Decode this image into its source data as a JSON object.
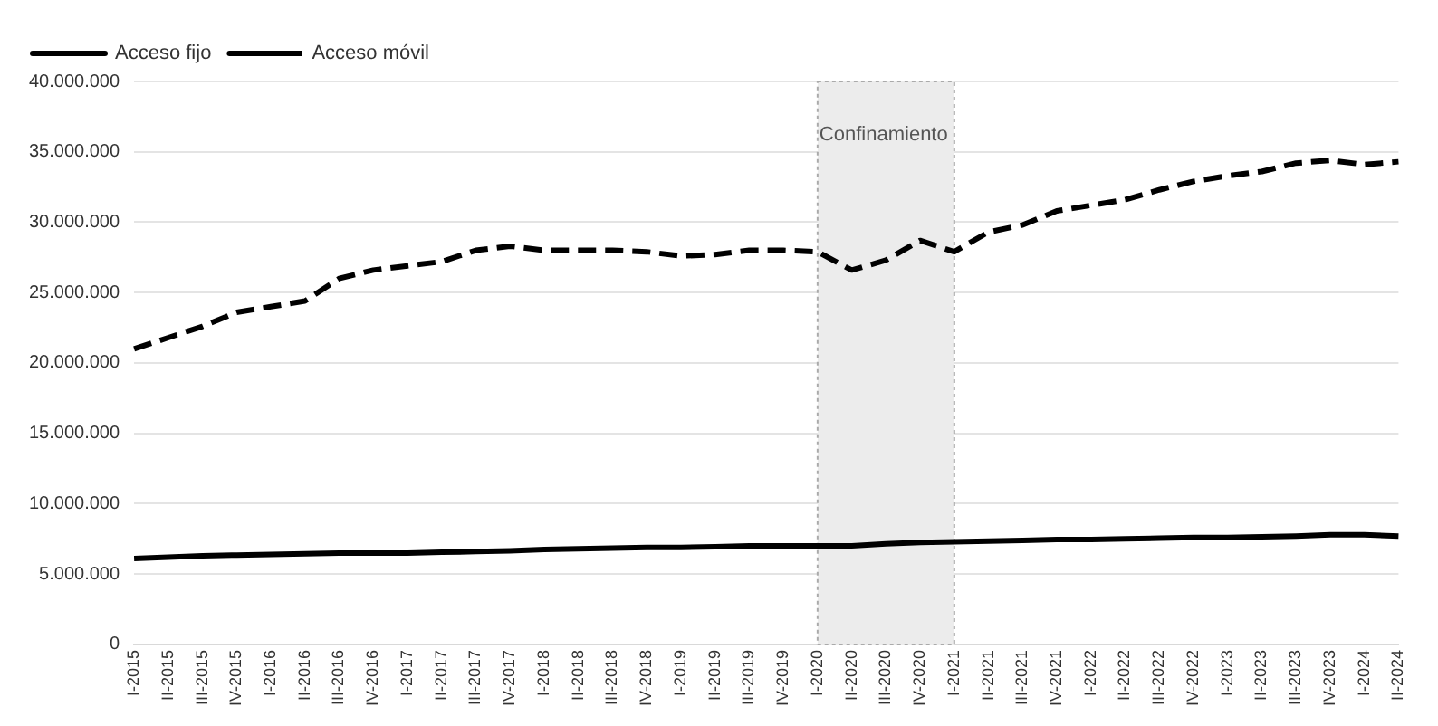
{
  "chart_data": {
    "type": "line",
    "categories": [
      "I-2015",
      "II-2015",
      "III-2015",
      "IV-2015",
      "I-2016",
      "II-2016",
      "III-2016",
      "IV-2016",
      "I-2017",
      "II-2017",
      "III-2017",
      "IV-2017",
      "I-2018",
      "II-2018",
      "III-2018",
      "IV-2018",
      "I-2019",
      "II-2019",
      "III-2019",
      "IV-2019",
      "I-2020",
      "II-2020",
      "III-2020",
      "IV-2020",
      "I-2021",
      "II-2021",
      "III-2021",
      "IV-2021",
      "I-2022",
      "II-2022",
      "III-2022",
      "IV-2022",
      "I-2023",
      "II-2023",
      "III-2023",
      "IV-2023",
      "I-2024",
      "II-2024"
    ],
    "series": [
      {
        "name": "Acceso fijo",
        "color": "#000000",
        "line_style": "solid",
        "values": [
          6100000,
          6200000,
          6300000,
          6350000,
          6400000,
          6450000,
          6500000,
          6500000,
          6500000,
          6550000,
          6600000,
          6650000,
          6750000,
          6800000,
          6850000,
          6900000,
          6900000,
          6950000,
          7000000,
          7000000,
          7000000,
          7000000,
          7150000,
          7250000,
          7300000,
          7350000,
          7400000,
          7450000,
          7450000,
          7500000,
          7550000,
          7600000,
          7600000,
          7650000,
          7700000,
          7800000,
          7800000,
          7700000
        ]
      },
      {
        "name": "Acceso móvil",
        "color": "#000000",
        "line_style": "dashed",
        "values": [
          21000000,
          21800000,
          22600000,
          23600000,
          24000000,
          24400000,
          26000000,
          26600000,
          26900000,
          27200000,
          28000000,
          28300000,
          28000000,
          28000000,
          28000000,
          27900000,
          27600000,
          27700000,
          28000000,
          28000000,
          27900000,
          26600000,
          27300000,
          28700000,
          27900000,
          29300000,
          29800000,
          30800000,
          31200000,
          31600000,
          32300000,
          32900000,
          33300000,
          33600000,
          34200000,
          34400000,
          34100000,
          34300000
        ]
      }
    ],
    "ylim": [
      0,
      40000000
    ],
    "yticks": [
      0,
      {
        "value": 5000000,
        "label": "5.000.000"
      },
      {
        "value": 10000000,
        "label": "10.000.000"
      },
      {
        "value": 15000000,
        "label": "15.000.000"
      },
      {
        "value": 20000000,
        "label": "20.000.000"
      },
      {
        "value": 25000000,
        "label": "25.000.000"
      },
      {
        "value": 30000000,
        "label": "30.000.000"
      },
      {
        "value": 35000000,
        "label": "35.000.000"
      },
      {
        "value": 40000000,
        "label": "40.000.000"
      }
    ],
    "grid": "y",
    "legend": "top left",
    "marker": "none",
    "bands": [
      {
        "axis": "x",
        "from": "I-2020",
        "to": "I-2021",
        "label": "Confinamiento",
        "color": "#ececec"
      }
    ]
  }
}
